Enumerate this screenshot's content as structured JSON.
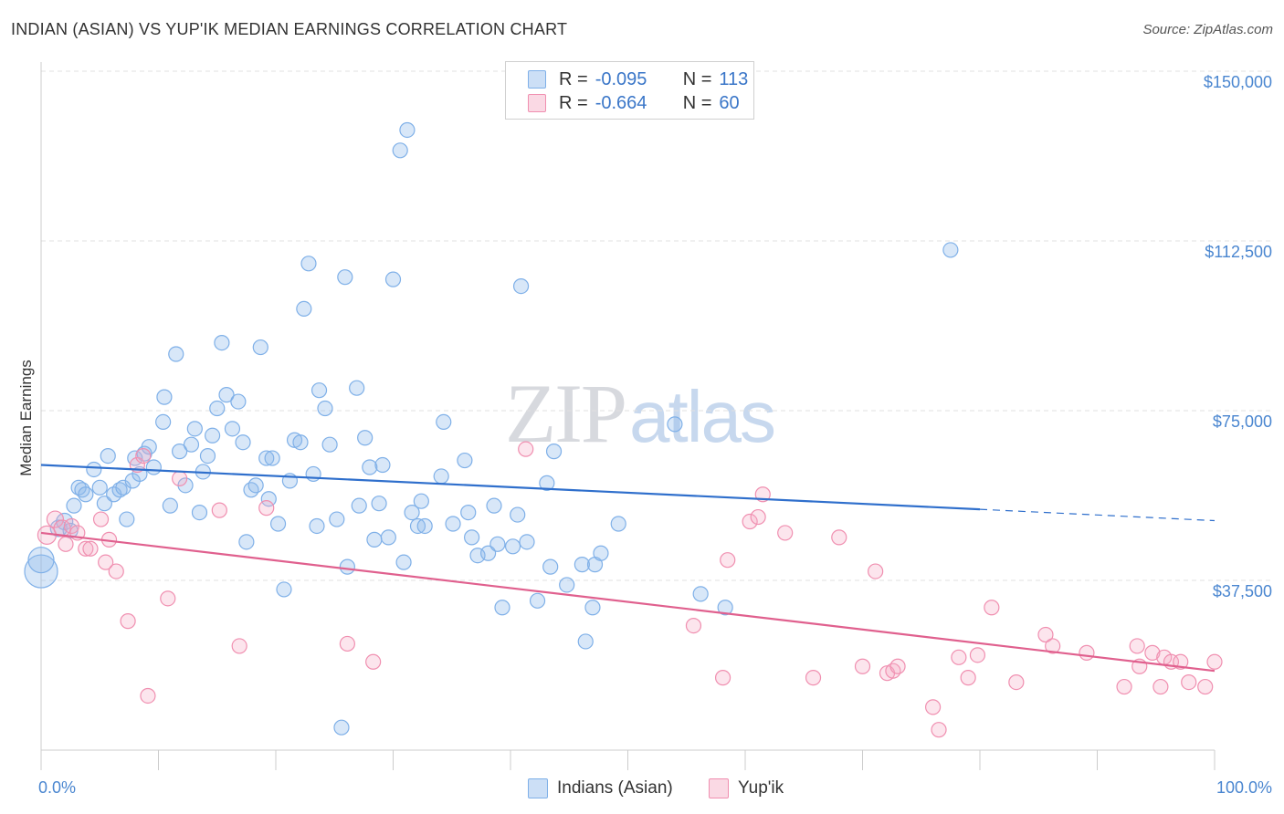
{
  "title": "INDIAN (ASIAN) VS YUP'IK MEDIAN EARNINGS CORRELATION CHART",
  "source": "Source: ZipAtlas.com",
  "watermark": {
    "zip": "ZIP",
    "atlas": "atlas"
  },
  "colors": {
    "indians": "#7fb0e8",
    "indians_fill": "rgba(143,185,235,0.35)",
    "indians_line": "#2f6fcc",
    "yupik": "#f08fb0",
    "yupik_fill": "rgba(245,170,195,0.30)",
    "yupik_line": "#e0608e",
    "axis_text": "#4a86d0",
    "grid": "#e0e0e0"
  },
  "legend": {
    "rows": [
      {
        "r_label": "R =",
        "r_value": "-0.095",
        "n_label": "N =",
        "n_value": "113",
        "swatch": "indians"
      },
      {
        "r_label": "R =",
        "r_value": "-0.664",
        "n_label": "N =",
        "n_value": "60",
        "swatch": "yupik"
      }
    ]
  },
  "bottom_legend": [
    {
      "label": "Indians (Asian)",
      "swatch": "indians"
    },
    {
      "label": "Yup'ik",
      "swatch": "yupik"
    }
  ],
  "chart_data": {
    "type": "scatter",
    "title": "INDIAN (ASIAN) VS YUP'IK MEDIAN EARNINGS CORRELATION CHART",
    "xlabel": "",
    "ylabel": "Median Earnings",
    "xlim": [
      0,
      100
    ],
    "ylim": [
      0,
      155000
    ],
    "x_tick_labels": [
      "0.0%",
      "100.0%"
    ],
    "y_ticks": [
      {
        "value": 37500,
        "label": "$37,500"
      },
      {
        "value": 75000,
        "label": "$75,000"
      },
      {
        "value": 112500,
        "label": "$112,500"
      },
      {
        "value": 150000,
        "label": "$150,000"
      }
    ],
    "series": [
      {
        "name": "Indians (Asian)",
        "trend": {
          "x0": 0,
          "y0": 63000,
          "x1": 80,
          "y1": 53200,
          "dash_to_x": 100,
          "dash_to_y": 50700
        },
        "points": [
          [
            0.0,
            39500,
            18
          ],
          [
            0.0,
            42000,
            14
          ],
          [
            1.5,
            49000,
            9
          ],
          [
            2.0,
            50500,
            9
          ],
          [
            2.5,
            48500,
            8
          ],
          [
            2.8,
            54000,
            8
          ],
          [
            3.2,
            58000,
            8
          ],
          [
            3.5,
            57500,
            8
          ],
          [
            3.8,
            56500,
            8
          ],
          [
            4.5,
            62000,
            8
          ],
          [
            5.0,
            58000,
            8
          ],
          [
            5.4,
            54500,
            8
          ],
          [
            5.7,
            65000,
            8
          ],
          [
            6.2,
            56500,
            8
          ],
          [
            6.7,
            57500,
            8
          ],
          [
            7.0,
            58000,
            8
          ],
          [
            7.3,
            51000,
            8
          ],
          [
            7.8,
            59500,
            8
          ],
          [
            8.0,
            64500,
            8
          ],
          [
            8.4,
            61000,
            8
          ],
          [
            8.8,
            65500,
            8
          ],
          [
            9.2,
            67000,
            8
          ],
          [
            9.6,
            62500,
            8
          ],
          [
            10.4,
            72500,
            8
          ],
          [
            10.5,
            78000,
            8
          ],
          [
            11.0,
            54000,
            8
          ],
          [
            11.5,
            87500,
            8
          ],
          [
            11.8,
            66000,
            8
          ],
          [
            12.3,
            58500,
            8
          ],
          [
            12.8,
            67500,
            8
          ],
          [
            13.1,
            71000,
            8
          ],
          [
            13.5,
            52500,
            8
          ],
          [
            13.8,
            61500,
            8
          ],
          [
            14.2,
            65000,
            8
          ],
          [
            14.6,
            69500,
            8
          ],
          [
            15.0,
            75500,
            8
          ],
          [
            15.4,
            90000,
            8
          ],
          [
            15.8,
            78500,
            8
          ],
          [
            16.3,
            71000,
            8
          ],
          [
            16.8,
            77000,
            8
          ],
          [
            17.2,
            68000,
            8
          ],
          [
            17.5,
            46000,
            8
          ],
          [
            17.9,
            57500,
            8
          ],
          [
            18.3,
            58500,
            8
          ],
          [
            18.7,
            89000,
            8
          ],
          [
            19.2,
            64500,
            8
          ],
          [
            19.4,
            55500,
            8
          ],
          [
            19.7,
            64500,
            8
          ],
          [
            20.2,
            50000,
            8
          ],
          [
            20.7,
            35500,
            8
          ],
          [
            21.2,
            59500,
            8
          ],
          [
            21.6,
            68500,
            8
          ],
          [
            22.1,
            68000,
            8
          ],
          [
            22.4,
            97500,
            8
          ],
          [
            22.8,
            107500,
            8
          ],
          [
            23.2,
            61000,
            8
          ],
          [
            23.5,
            49500,
            8
          ],
          [
            23.7,
            79500,
            8
          ],
          [
            24.2,
            75500,
            8
          ],
          [
            24.6,
            67500,
            8
          ],
          [
            25.2,
            51000,
            8
          ],
          [
            25.6,
            5000,
            8
          ],
          [
            25.9,
            104500,
            8
          ],
          [
            26.1,
            40500,
            8
          ],
          [
            26.9,
            80000,
            8
          ],
          [
            27.1,
            54000,
            8
          ],
          [
            27.6,
            69000,
            8
          ],
          [
            28.0,
            62500,
            8
          ],
          [
            28.4,
            46500,
            8
          ],
          [
            28.8,
            54500,
            8
          ],
          [
            29.1,
            63000,
            8
          ],
          [
            29.6,
            47000,
            8
          ],
          [
            30.0,
            104000,
            8
          ],
          [
            30.6,
            132500,
            8
          ],
          [
            30.9,
            41500,
            8
          ],
          [
            31.2,
            137000,
            8
          ],
          [
            31.6,
            52500,
            8
          ],
          [
            32.1,
            49500,
            8
          ],
          [
            32.4,
            55000,
            8
          ],
          [
            32.7,
            49500,
            8
          ],
          [
            34.1,
            60500,
            8
          ],
          [
            34.3,
            72500,
            8
          ],
          [
            35.1,
            50000,
            8
          ],
          [
            36.1,
            64000,
            8
          ],
          [
            36.4,
            52500,
            8
          ],
          [
            36.7,
            47000,
            8
          ],
          [
            37.2,
            43000,
            8
          ],
          [
            38.1,
            43500,
            8
          ],
          [
            38.6,
            54000,
            8
          ],
          [
            38.9,
            45500,
            8
          ],
          [
            39.3,
            31500,
            8
          ],
          [
            40.2,
            45000,
            8
          ],
          [
            40.6,
            52000,
            8
          ],
          [
            40.9,
            102500,
            8
          ],
          [
            41.4,
            46000,
            8
          ],
          [
            42.3,
            33000,
            8
          ],
          [
            43.1,
            59000,
            8
          ],
          [
            43.4,
            40500,
            8
          ],
          [
            43.7,
            66000,
            8
          ],
          [
            44.8,
            36500,
            8
          ],
          [
            46.1,
            41000,
            8
          ],
          [
            46.4,
            24000,
            8
          ],
          [
            47.0,
            31500,
            8
          ],
          [
            47.2,
            41000,
            8
          ],
          [
            47.7,
            43500,
            8
          ],
          [
            49.2,
            50000,
            8
          ],
          [
            54.0,
            72000,
            8
          ],
          [
            56.2,
            34500,
            8
          ],
          [
            58.3,
            31500,
            8
          ],
          [
            77.5,
            110500,
            8
          ]
        ]
      },
      {
        "name": "Yup'ik",
        "trend": {
          "x0": 0,
          "y0": 48000,
          "x1": 100,
          "y1": 17500
        },
        "points": [
          [
            0.5,
            47500,
            10
          ],
          [
            1.2,
            51000,
            9
          ],
          [
            1.8,
            49000,
            9
          ],
          [
            2.1,
            45500,
            8
          ],
          [
            2.6,
            49500,
            8
          ],
          [
            3.1,
            48000,
            8
          ],
          [
            3.8,
            44500,
            8
          ],
          [
            4.2,
            44500,
            8
          ],
          [
            5.1,
            51000,
            8
          ],
          [
            5.5,
            41500,
            8
          ],
          [
            5.8,
            46500,
            8
          ],
          [
            6.4,
            39500,
            8
          ],
          [
            7.4,
            28500,
            8
          ],
          [
            8.2,
            63000,
            8
          ],
          [
            8.7,
            65000,
            8
          ],
          [
            9.1,
            12000,
            8
          ],
          [
            10.8,
            33500,
            8
          ],
          [
            11.8,
            60000,
            8
          ],
          [
            15.2,
            53000,
            8
          ],
          [
            16.9,
            23000,
            8
          ],
          [
            19.2,
            53500,
            8
          ],
          [
            26.1,
            23500,
            8
          ],
          [
            28.3,
            19500,
            8
          ],
          [
            41.3,
            66500,
            8
          ],
          [
            55.6,
            27500,
            8
          ],
          [
            58.1,
            16000,
            8
          ],
          [
            58.5,
            42000,
            8
          ],
          [
            60.4,
            50500,
            8
          ],
          [
            61.1,
            51500,
            8
          ],
          [
            61.5,
            56500,
            8
          ],
          [
            63.4,
            48000,
            8
          ],
          [
            65.8,
            16000,
            8
          ],
          [
            68.0,
            47000,
            8
          ],
          [
            70.0,
            18500,
            8
          ],
          [
            71.1,
            39500,
            8
          ],
          [
            72.1,
            17000,
            8
          ],
          [
            72.6,
            17500,
            8
          ],
          [
            73.0,
            18500,
            8
          ],
          [
            76.0,
            9500,
            8
          ],
          [
            76.5,
            4500,
            8
          ],
          [
            78.2,
            20500,
            8
          ],
          [
            79.0,
            16000,
            8
          ],
          [
            79.8,
            21000,
            8
          ],
          [
            81.0,
            31500,
            8
          ],
          [
            83.1,
            15000,
            8
          ],
          [
            85.6,
            25500,
            8
          ],
          [
            86.2,
            23000,
            8
          ],
          [
            89.1,
            21500,
            8
          ],
          [
            92.3,
            14000,
            8
          ],
          [
            93.4,
            23000,
            8
          ],
          [
            93.6,
            18500,
            8
          ],
          [
            94.7,
            21500,
            8
          ],
          [
            95.4,
            14000,
            8
          ],
          [
            95.7,
            20500,
            8
          ],
          [
            96.3,
            19500,
            8
          ],
          [
            97.1,
            19500,
            8
          ],
          [
            97.8,
            15000,
            8
          ],
          [
            99.2,
            14000,
            8
          ],
          [
            100.0,
            19500,
            8
          ]
        ]
      }
    ]
  }
}
